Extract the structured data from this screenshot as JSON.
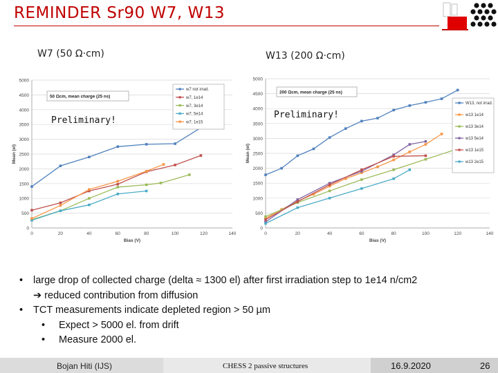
{
  "slide": {
    "title": "REMINDER Sr90 W7, W13",
    "left_label": "W7 (50 Ω·cm)",
    "right_label": "W13 (200 Ω·cm)",
    "bullets": {
      "b1_line1": "large drop of collected charge (delta ≈ 1300 el) after first irradiation step  to 1e14 n/cm2",
      "b1_line2": "➔ reduced contribution from diffusion",
      "b2": "TCT measurements indicate depleted region > 50 µm",
      "b2_sub1": "Expect > 5000 el. from drift",
      "b2_sub2": "Measure 2000 el."
    },
    "bullet_symbol": "•",
    "footer": {
      "author": "Bojan Hiti (IJS)",
      "center": "CHESS 2 passive structures",
      "date": "16.9.2020",
      "page": "26"
    },
    "colors": {
      "title": "#c00000",
      "footer_left": "#d9d9d9",
      "footer_mid": "#e6e6e6",
      "footer_right": "#cccccc"
    }
  },
  "chart_data": [
    {
      "type": "line",
      "xlabel": "Bias (V)",
      "ylabel": "Mean (el)",
      "xlim": [
        0,
        140
      ],
      "ylim": [
        0,
        5000
      ],
      "xticks": [
        0,
        20,
        40,
        60,
        80,
        100,
        120,
        140
      ],
      "yticks": [
        0,
        500,
        1000,
        1500,
        2000,
        2500,
        3000,
        3500,
        4000,
        4500,
        5000
      ],
      "annotation_box": "50 Ωcm, mean charge (25 ns)",
      "watermark": "Preliminary!",
      "grid": true,
      "legend": "top-right",
      "series": [
        {
          "name": "w7 not irrad.",
          "color": "#4f81bd",
          "x": [
            0,
            20,
            40,
            60,
            80,
            100,
            120
          ],
          "y": [
            1400,
            2100,
            2400,
            2750,
            2830,
            2850,
            3450
          ]
        },
        {
          "name": "w7, 1e14",
          "color": "#c0504d",
          "x": [
            0,
            20,
            40,
            60,
            80,
            100,
            118
          ],
          "y": [
            600,
            850,
            1250,
            1480,
            1900,
            2130,
            2450
          ]
        },
        {
          "name": "w7, 3e14",
          "color": "#9bbb59",
          "x": [
            0,
            20,
            40,
            60,
            80,
            90,
            110
          ],
          "y": [
            280,
            580,
            1000,
            1380,
            1460,
            1520,
            1800
          ]
        },
        {
          "name": "w7, 5e14",
          "color": "#4bacc6",
          "x": [
            0,
            20,
            40,
            60,
            80
          ],
          "y": [
            260,
            580,
            780,
            1150,
            1250
          ]
        },
        {
          "name": "w7, 1e15",
          "color": "#f79646",
          "x": [
            0,
            20,
            40,
            60,
            80,
            92
          ],
          "y": [
            320,
            760,
            1300,
            1580,
            1920,
            2150
          ]
        }
      ]
    },
    {
      "type": "line",
      "xlabel": "Bias (V)",
      "ylabel": "Mean (el)",
      "xlim": [
        0,
        140
      ],
      "ylim": [
        0,
        5000
      ],
      "xticks": [
        0,
        20,
        40,
        60,
        80,
        100,
        120,
        140
      ],
      "yticks": [
        0,
        500,
        1000,
        1500,
        2000,
        2500,
        3000,
        3500,
        4000,
        4500,
        5000
      ],
      "annotation_box": "200 Ωcm, mean charge (25 ns)",
      "watermark": "Preliminary!",
      "grid": true,
      "legend": "right",
      "series": [
        {
          "name": "W13, not irrad.",
          "color": "#4f81bd",
          "x": [
            0,
            10,
            20,
            30,
            40,
            50,
            60,
            70,
            80,
            90,
            100,
            110,
            120
          ],
          "y": [
            1780,
            2000,
            2420,
            2650,
            3030,
            3330,
            3580,
            3680,
            3950,
            4100,
            4210,
            4330,
            4620
          ]
        },
        {
          "name": "w13 1e14",
          "color": "#f79646",
          "x": [
            0,
            10,
            20,
            30,
            40,
            50,
            60,
            70,
            80,
            90,
            100,
            110
          ],
          "y": [
            320,
            620,
            900,
            1130,
            1400,
            1650,
            1850,
            2050,
            2280,
            2550,
            2800,
            3150
          ]
        },
        {
          "name": "w13 3e14",
          "color": "#9bbb59",
          "x": [
            0,
            20,
            40,
            60,
            80,
            100,
            120
          ],
          "y": [
            380,
            850,
            1240,
            1620,
            1950,
            2300,
            2650
          ]
        },
        {
          "name": "w13 5e14",
          "color": "#8064a2",
          "x": [
            0,
            20,
            40,
            60,
            80,
            90,
            100
          ],
          "y": [
            200,
            950,
            1500,
            1900,
            2450,
            2800,
            2900
          ]
        },
        {
          "name": "w13 1e15",
          "color": "#c0504d",
          "x": [
            0,
            20,
            40,
            60,
            80,
            100
          ],
          "y": [
            280,
            880,
            1450,
            1950,
            2400,
            2420
          ]
        },
        {
          "name": "w13 2e15",
          "color": "#4bacc6",
          "x": [
            0,
            20,
            40,
            60,
            80,
            90
          ],
          "y": [
            150,
            680,
            1000,
            1320,
            1650,
            1950
          ]
        }
      ]
    }
  ]
}
